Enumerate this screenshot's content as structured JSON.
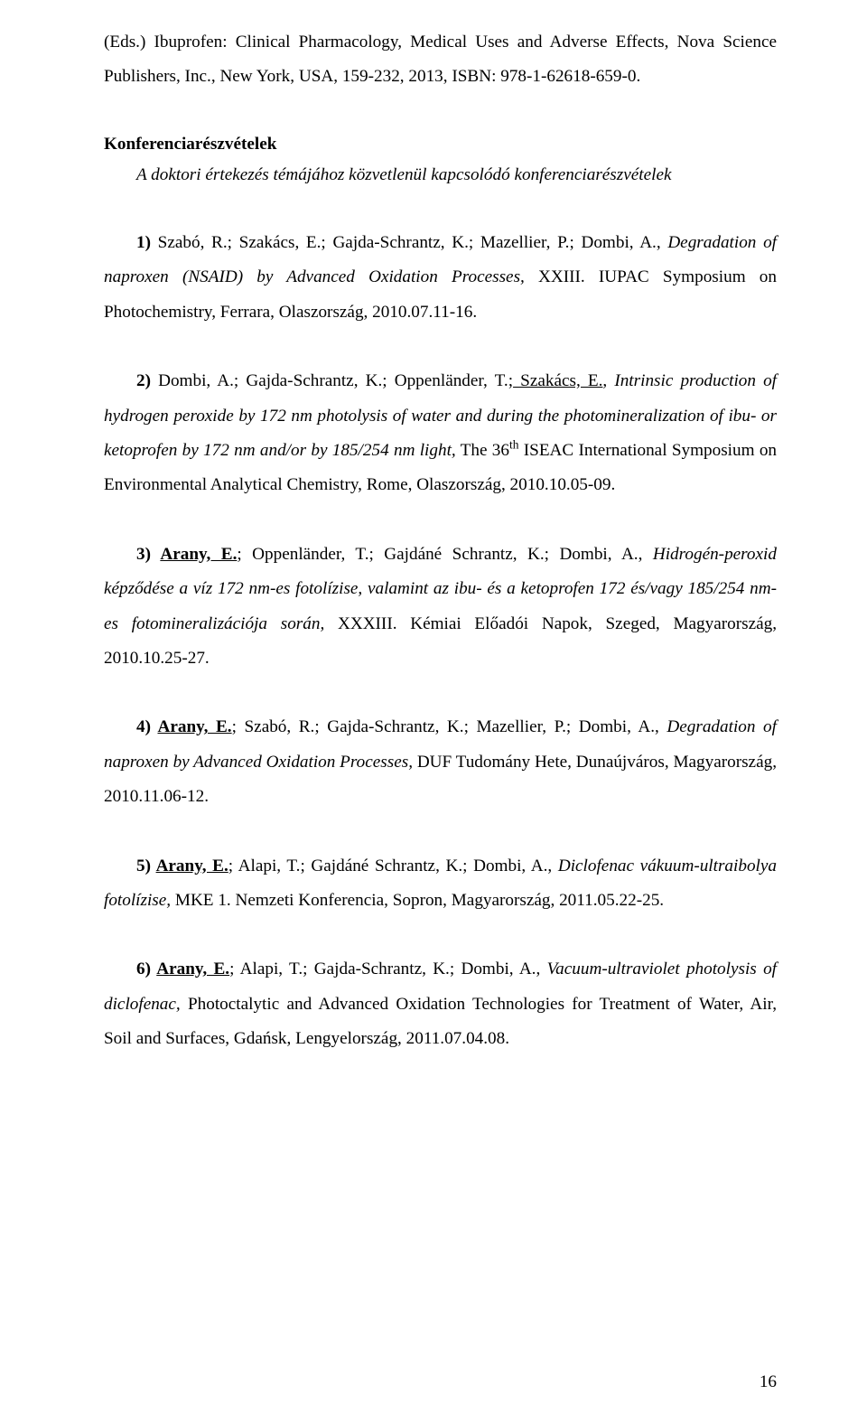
{
  "page": {
    "font_family": "Times New Roman",
    "font_size_pt": 12,
    "line_spacing": 2.0,
    "text_color": "#000000",
    "background_color": "#ffffff",
    "page_number": "16"
  },
  "top_fragment": {
    "text_plain": "(Eds.) Ibuprofen: Clinical Pharmacology, Medical Uses and Adverse Effects, Nova Science Publishers, Inc., New York, USA, 159-232, 2013, ISBN: 978-1-62618-659-0."
  },
  "section": {
    "heading_bold": "Konferenciarészvételek",
    "heading_italic": "A doktori értekezés témájához közvetlenül kapcsolódó konferenciarészvételek"
  },
  "entries": {
    "e1": {
      "num": "1) ",
      "lead_plain": "Szabó, R.; Szakács, E.; Gajda-Schrantz, K.; Mazellier, P.; Dombi, A., ",
      "title_italic": "Degradation of naproxen (NSAID) by Advanced Oxidation Processes,",
      "tail_plain": " XXIII. IUPAC Symposium on Photochemistry, Ferrara, Olaszország, 2010.07.11-16."
    },
    "e2": {
      "num": "2) ",
      "lead_plain_a": "Dombi, A.; Gajda-Schrantz, K.; Oppenländer, T.;",
      "lead_underline": " Szakács, E.",
      "lead_plain_b": ", ",
      "title_italic": "Intrinsic production of hydrogen peroxide by 172 nm photolysis of water and during the photomineralization of ibu- or ketoprofen by 172 nm and/or by 185/254 nm light,",
      "tail_a": " The 36",
      "tail_sup": "th",
      "tail_b": " ISEAC International Symposium on Environmental Analytical Chemistry, Rome, Olaszország, 2010.10.05-09."
    },
    "e3": {
      "num": "3) ",
      "name_bu": "Arany, E.",
      "lead_plain": "; Oppenländer, T.; Gajdáné Schrantz, K.; Dombi, A., ",
      "title_italic": "Hidrogén-peroxid képződése a víz 172 nm-es fotolízise, valamint az ibu- és a ketoprofen 172 és/vagy 185/254 nm-es fotomineralizációja során,",
      "tail_plain": " XXXIII. Kémiai Előadói Napok, Szeged, Magyarország, 2010.10.25-27."
    },
    "e4": {
      "num": "4) ",
      "name_bu": "Arany, E.",
      "lead_plain": "; Szabó, R.; Gajda-Schrantz, K.; Mazellier, P.; Dombi, A., ",
      "title_italic": "Degradation of naproxen by Advanced Oxidation Processes,",
      "tail_plain": " DUF Tudomány Hete, Dunaújváros, Magyarország, 2010.11.06-12."
    },
    "e5": {
      "num": "5) ",
      "name_bu": "Arany, E.",
      "lead_plain": "; Alapi, T.; Gajdáné Schrantz, K.; Dombi, A., ",
      "title_italic": "Diclofenac vákuum-ultraibolya fotolízise,",
      "tail_plain": " MKE 1. Nemzeti Konferencia, Sopron, Magyarország, 2011.05.22-25."
    },
    "e6": {
      "num": "6) ",
      "name_bu": "Arany, E.",
      "lead_plain": "; Alapi, T.; Gajda-Schrantz, K.; Dombi, A., ",
      "title_italic": "Vacuum-ultraviolet photolysis of diclofenac,",
      "tail_plain": " Photoctalytic and Advanced Oxidation Technologies for Treatment of Water, Air, Soil and Surfaces, Gdańsk, Lengyelország, 2011.07.04.08."
    }
  }
}
